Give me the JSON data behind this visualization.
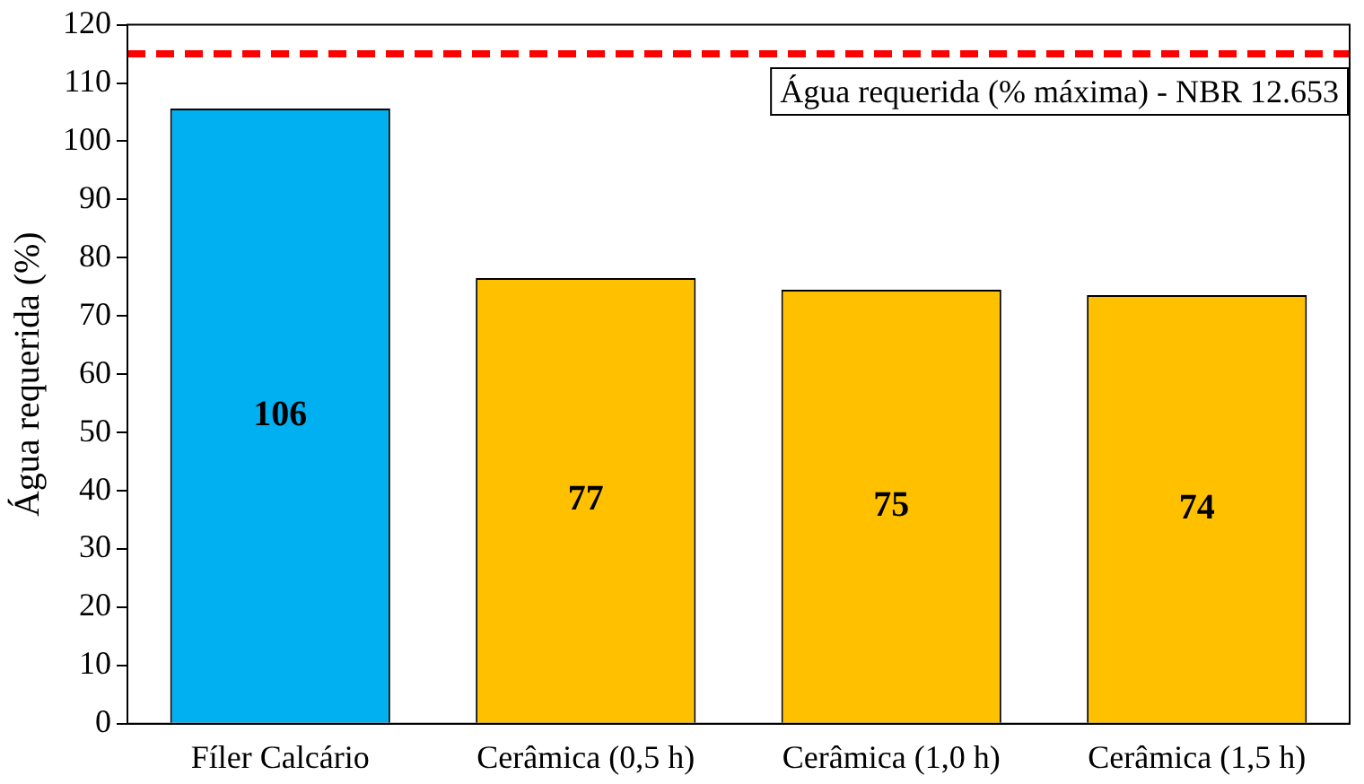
{
  "chart_data": {
    "type": "bar",
    "ylabel": "Água requerida (%)",
    "categories": [
      "Fíler Calcário",
      "Cerâmica (0,5 h)",
      "Cerâmica (1,0 h)",
      "Cerâmica (1,5 h)"
    ],
    "values": [
      105.6,
      76.5,
      74.5,
      73.6
    ],
    "colors": [
      "#00b0f0",
      "#ffc000",
      "#ffc000",
      "#ffc000"
    ],
    "value_labels": [
      "106",
      "77",
      "75",
      "74"
    ],
    "ylim": [
      0,
      120
    ],
    "yticks": [
      0,
      10,
      20,
      30,
      40,
      50,
      60,
      70,
      80,
      90,
      100,
      110,
      120
    ],
    "grid": false,
    "legend": false,
    "ref_lines": [
      {
        "axis": "y",
        "value": 115,
        "label": "Água requerida (% máxima) - NBR 12.653",
        "color": "#ff0000",
        "line_style": "dashed"
      }
    ]
  }
}
